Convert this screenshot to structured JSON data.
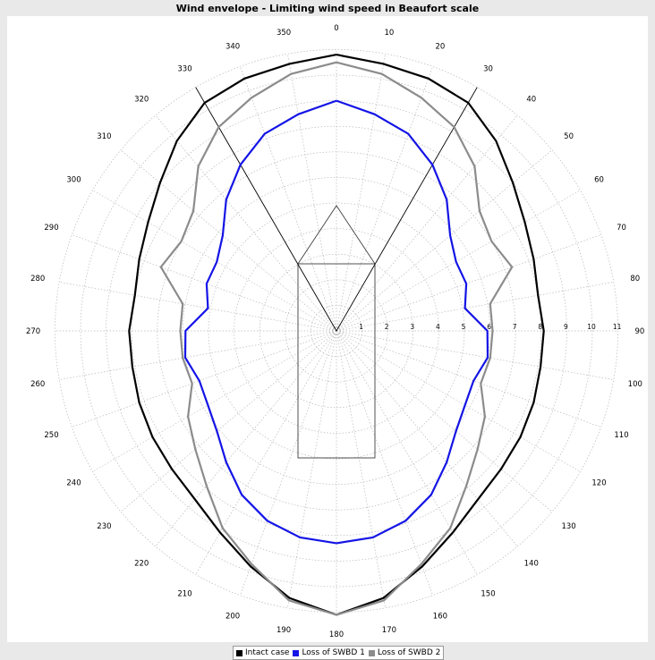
{
  "title": "Wind envelope - Limiting wind speed in Beaufort scale",
  "colors": {
    "intact": "#000000",
    "swbd1": "#1414e6",
    "swbd2": "#8c8c8c",
    "grid": "#b8b8b8",
    "ship": "#404040"
  },
  "chart_data": {
    "type": "polar-line",
    "title": "Wind envelope - Limiting wind speed in Beaufort scale",
    "angle_unit": "degrees",
    "angle_zero": "top",
    "angle_direction": "clockwise",
    "angle_ticks": [
      0,
      10,
      20,
      30,
      40,
      50,
      60,
      70,
      80,
      90,
      100,
      110,
      120,
      130,
      140,
      150,
      160,
      170,
      180,
      190,
      200,
      210,
      220,
      230,
      240,
      250,
      260,
      270,
      280,
      290,
      300,
      310,
      320,
      330,
      340,
      350
    ],
    "radial_ticks": [
      1,
      2,
      3,
      4,
      5,
      6,
      7,
      8,
      9,
      10,
      11
    ],
    "radial_range": [
      0,
      11
    ],
    "grid": true,
    "legend_position": "bottom",
    "angles": [
      0,
      10,
      20,
      30,
      40,
      50,
      60,
      70,
      80,
      90,
      100,
      110,
      120,
      130,
      140,
      150,
      160,
      170,
      180,
      190,
      200,
      210,
      220,
      230,
      240,
      250,
      260,
      270,
      280,
      290,
      300,
      310,
      320,
      330,
      340,
      350
    ],
    "series": [
      {
        "name": "Intact case",
        "color": "#000000",
        "values": [
          10.8,
          10.6,
          10.5,
          10.3,
          9.7,
          9.0,
          8.5,
          8.2,
          8.0,
          8.1,
          8.1,
          8.2,
          8.3,
          8.4,
          8.6,
          9.1,
          9.8,
          10.6,
          11.1,
          10.6,
          9.8,
          9.1,
          8.6,
          8.4,
          8.3,
          8.2,
          8.1,
          8.1,
          8.0,
          8.2,
          8.5,
          9.0,
          9.7,
          10.3,
          10.5,
          10.6
        ]
      },
      {
        "name": "Loss of SWBD 1",
        "color": "#1414e6",
        "values": [
          9.0,
          8.6,
          8.2,
          7.5,
          6.7,
          5.8,
          5.4,
          5.4,
          5.1,
          5.9,
          6.0,
          5.7,
          5.8,
          6.1,
          6.7,
          7.4,
          7.9,
          8.2,
          8.3,
          8.2,
          7.9,
          7.4,
          6.7,
          6.1,
          5.8,
          5.7,
          6.0,
          5.9,
          5.1,
          5.4,
          5.4,
          5.8,
          6.7,
          7.5,
          8.2,
          8.6
        ]
      },
      {
        "name": "Loss of SWBD 2",
        "color": "#8c8c8c",
        "values": [
          10.5,
          10.2,
          9.7,
          9.2,
          8.4,
          7.3,
          7.0,
          7.3,
          6.1,
          6.1,
          6.1,
          6.0,
          6.7,
          7.2,
          7.9,
          8.9,
          9.7,
          10.7,
          11.1,
          10.7,
          9.7,
          8.9,
          7.9,
          7.2,
          6.7,
          6.0,
          6.1,
          6.1,
          6.1,
          7.3,
          7.0,
          7.3,
          8.4,
          9.2,
          9.7,
          10.2
        ]
      }
    ]
  },
  "legend": {
    "items": [
      {
        "label": "Intact case",
        "color": "#000000"
      },
      {
        "label": "Loss of SWBD 1",
        "color": "#1414e6"
      },
      {
        "label": "Loss of SWBD 2",
        "color": "#8c8c8c"
      }
    ]
  }
}
